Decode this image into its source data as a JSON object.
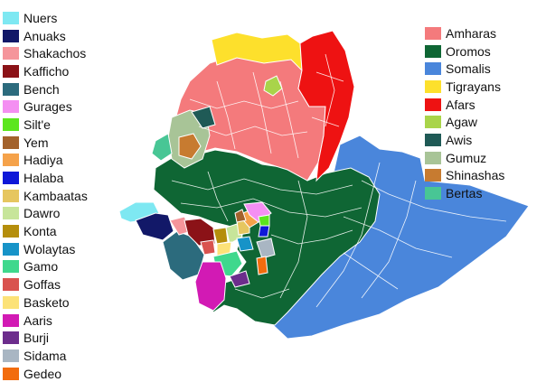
{
  "legend_left": [
    {
      "label": "Nuers",
      "color": "#7ee8f2"
    },
    {
      "label": "Anuaks",
      "color": "#121868"
    },
    {
      "label": "Shakachos",
      "color": "#f5959b"
    },
    {
      "label": "Kafficho",
      "color": "#8b1217"
    },
    {
      "label": "Bench",
      "color": "#2c6b7d"
    },
    {
      "label": "Gurages",
      "color": "#f48ff2"
    },
    {
      "label": "Silt'e",
      "color": "#5ce61e"
    },
    {
      "label": "Yem",
      "color": "#a3622c"
    },
    {
      "label": "Hadiya",
      "color": "#f5a24a"
    },
    {
      "label": "Halaba",
      "color": "#0f18d8"
    },
    {
      "label": "Kambaatas",
      "color": "#e6c65f"
    },
    {
      "label": "Dawro",
      "color": "#c7e59a"
    },
    {
      "label": "Konta",
      "color": "#b58e0c"
    },
    {
      "label": "Wolaytas",
      "color": "#1793c8"
    },
    {
      "label": "Gamo",
      "color": "#3fd88d"
    },
    {
      "label": "Goffas",
      "color": "#d9534f"
    },
    {
      "label": "Basketo",
      "color": "#fce278"
    },
    {
      "label": "Aaris",
      "color": "#d21ab4"
    },
    {
      "label": "Burji",
      "color": "#6c2d8c"
    },
    {
      "label": "Sidama",
      "color": "#a9b6c3"
    },
    {
      "label": "Gedeo",
      "color": "#f26c0d"
    }
  ],
  "legend_right": [
    {
      "label": "Amharas",
      "color": "#f47a7c"
    },
    {
      "label": "Oromos",
      "color": "#0f6634"
    },
    {
      "label": "Somalis",
      "color": "#4a86db"
    },
    {
      "label": "Tigrayans",
      "color": "#fde02c"
    },
    {
      "label": "Afars",
      "color": "#ee1212"
    },
    {
      "label": "Agaw",
      "color": "#a9d44a"
    },
    {
      "label": "Awis",
      "color": "#1f5a56"
    },
    {
      "label": "Gumuz",
      "color": "#a8c497"
    },
    {
      "label": "Shinashas",
      "color": "#c77b30"
    },
    {
      "label": "Bertas",
      "color": "#48c695"
    }
  ]
}
